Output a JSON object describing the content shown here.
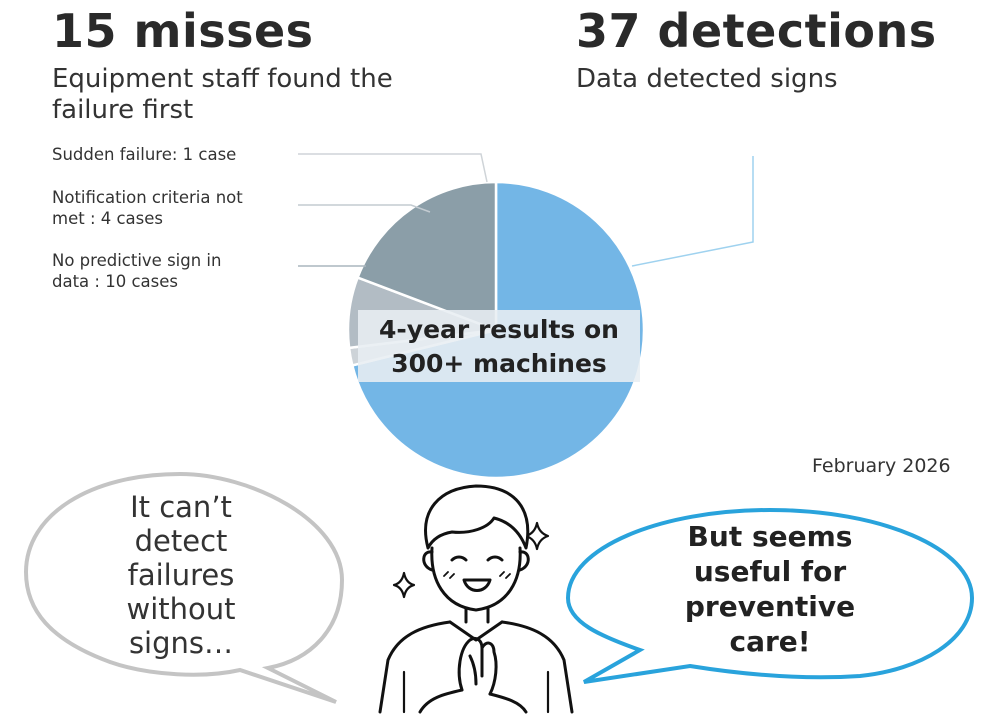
{
  "chart_data": {
    "type": "pie",
    "title": "4-year results on 300+ machines",
    "slices": [
      {
        "label": "Data detected signs",
        "value": 37,
        "color": "#73b6e6"
      },
      {
        "label": "Sudden failure: 1 case",
        "value": 1,
        "color": "#cdd3d8"
      },
      {
        "label": "Notification criteria not met : 4 cases",
        "value": 4,
        "color": "#b2bcc4"
      },
      {
        "label": "No predictive sign in data : 10 cases",
        "value": 10,
        "color": "#8b9ea8"
      }
    ]
  },
  "headline_left": {
    "value": "15 misses",
    "desc_line1": "Equipment staff found the",
    "desc_line2": "failure first"
  },
  "headline_right": {
    "value": "37 detections",
    "desc": "Data detected signs"
  },
  "labels": {
    "sudden": "Sudden failure: 1 case",
    "criteria_line1": "Notification criteria not",
    "criteria_line2": "met : 4 cases",
    "no_sign_line1": "No predictive sign in",
    "no_sign_line2": "data : 10 cases"
  },
  "center_box": {
    "line1": "4-year results on",
    "line2": "300+ machines"
  },
  "date": "February 2026",
  "bubble_left": [
    "It can’t",
    "detect",
    "failures",
    "without",
    "signs…"
  ],
  "bubble_right": [
    "But seems",
    "useful for",
    "preventive",
    "care!"
  ],
  "colors": {
    "detected": "#73b6e6",
    "bubble_right_stroke": "#29a3dc",
    "bubble_left_stroke": "#bdbdbd"
  }
}
